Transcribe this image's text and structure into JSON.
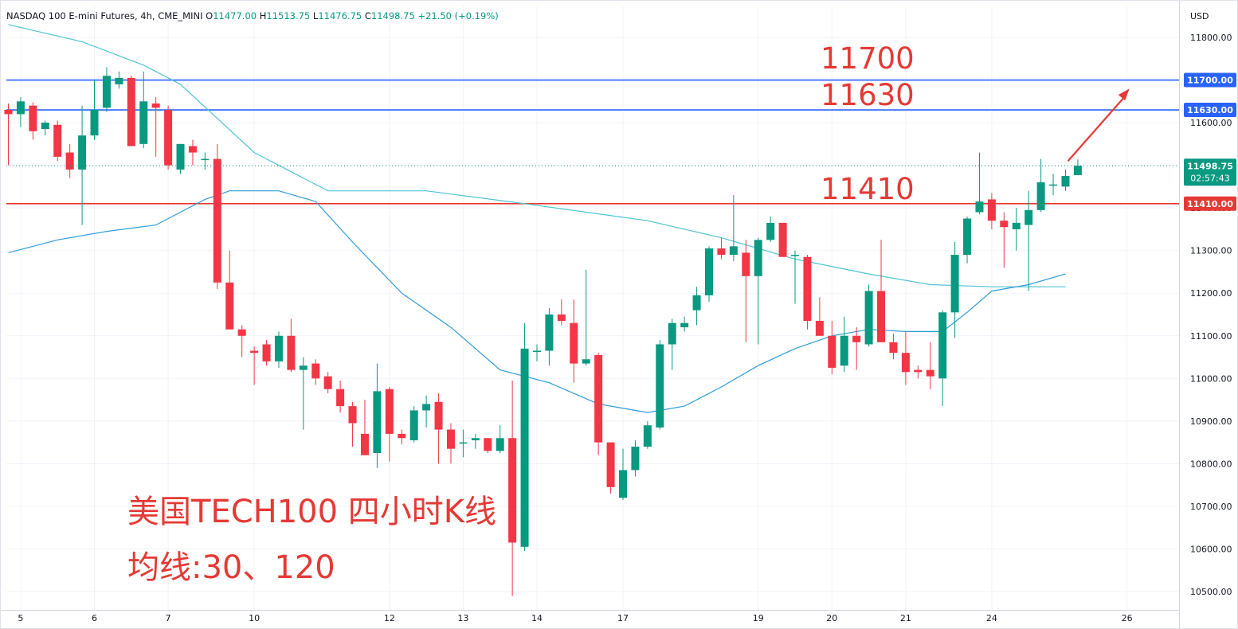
{
  "header": {
    "symbol": "NASDAQ 100 E-mini Futures, 4h, CME_MINI",
    "open_label": "O",
    "open": "11477.00",
    "high_label": "H",
    "high": "11513.75",
    "low_label": "L",
    "low": "11476.75",
    "close_label": "C",
    "close": "11498.75",
    "change": "+21.50 (+0.19%)"
  },
  "axis_unit": "USD",
  "price_badge": {
    "price": "11498.75",
    "countdown": "02:57:43"
  },
  "annotations": {
    "level_11700": "11700",
    "level_11630": "11630",
    "level_11410": "11410",
    "title": "美国TECH100 四小时K线",
    "ma_note": "均线:30、120"
  },
  "colors": {
    "up": "#089981",
    "down": "#f23645",
    "ma30": "#2f9bd6",
    "ma120": "#4ec3d6",
    "blue_line": "#2962ff",
    "red_line": "#e53935",
    "annotation": "#e53935"
  },
  "chart_data": {
    "type": "candlestick",
    "ylim": [
      10480,
      11840
    ],
    "y_ticks": [
      10500,
      10600,
      10700,
      10800,
      10900,
      11000,
      11100,
      11200,
      11300,
      11400,
      11500,
      11600,
      11700,
      11800
    ],
    "y_tick_labels": [
      "10500.00",
      "10600.00",
      "10700.00",
      "10800.00",
      "10900.00",
      "11000.00",
      "11100.00",
      "11200.00",
      "11300.00",
      "11400.00",
      "11500.00",
      "11600.00",
      "11700.00",
      "11800.00"
    ],
    "x_ticks": [
      {
        "label": "5",
        "bar": 1
      },
      {
        "label": "6",
        "bar": 7
      },
      {
        "label": "7",
        "bar": 13
      },
      {
        "label": "10",
        "bar": 20
      },
      {
        "label": "12",
        "bar": 31
      },
      {
        "label": "13",
        "bar": 37
      },
      {
        "label": "14",
        "bar": 43
      },
      {
        "label": "17",
        "bar": 50
      },
      {
        "label": "19",
        "bar": 61
      },
      {
        "label": "20",
        "bar": 67
      },
      {
        "label": "21",
        "bar": 73
      },
      {
        "label": "24",
        "bar": 80
      },
      {
        "label": "26",
        "bar": 91
      }
    ],
    "horizontal_lines": [
      {
        "price": 11700,
        "label": "11700.00",
        "color": "blue"
      },
      {
        "price": 11630,
        "label": "11630.00",
        "color": "blue"
      },
      {
        "price": 11410,
        "label": "11410.00",
        "color": "red"
      }
    ],
    "last_price": 11498.75,
    "candles": [
      [
        11630,
        11645,
        11500,
        11620
      ],
      [
        11620,
        11660,
        11590,
        11650
      ],
      [
        11640,
        11648,
        11560,
        11580
      ],
      [
        11585,
        11605,
        11570,
        11600
      ],
      [
        11595,
        11605,
        11510,
        11520
      ],
      [
        11530,
        11550,
        11470,
        11490
      ],
      [
        11490,
        11640,
        11360,
        11570
      ],
      [
        11570,
        11700,
        11560,
        11630
      ],
      [
        11635,
        11730,
        11625,
        11710
      ],
      [
        11690,
        11720,
        11680,
        11705
      ],
      [
        11705,
        11710,
        11545,
        11545
      ],
      [
        11550,
        11720,
        11540,
        11650
      ],
      [
        11645,
        11660,
        11520,
        11635
      ],
      [
        11630,
        11640,
        11490,
        11500
      ],
      [
        11490,
        11550,
        11480,
        11550
      ],
      [
        11545,
        11560,
        11500,
        11530
      ],
      [
        11515,
        11530,
        11490,
        11515
      ],
      [
        11515,
        11550,
        11210,
        11225
      ],
      [
        11225,
        11300,
        11115,
        11115
      ],
      [
        11115,
        11125,
        11050,
        11100
      ],
      [
        11065,
        11075,
        10985,
        11060
      ],
      [
        11080,
        11090,
        11030,
        11040
      ],
      [
        11040,
        11110,
        11025,
        11100
      ],
      [
        11100,
        11140,
        11015,
        11020
      ],
      [
        11020,
        11050,
        10880,
        11030
      ],
      [
        11035,
        11045,
        10985,
        11000
      ],
      [
        11005,
        11015,
        10965,
        10975
      ],
      [
        10975,
        10995,
        10920,
        10935
      ],
      [
        10935,
        10945,
        10840,
        10895
      ],
      [
        10870,
        10950,
        10820,
        10820
      ],
      [
        10825,
        11035,
        10790,
        10970
      ],
      [
        10975,
        10980,
        10805,
        10870
      ],
      [
        10870,
        10880,
        10845,
        10860
      ],
      [
        10855,
        10935,
        10850,
        10925
      ],
      [
        10925,
        10960,
        10885,
        10940
      ],
      [
        10945,
        10965,
        10800,
        10880
      ],
      [
        10880,
        10895,
        10800,
        10835
      ],
      [
        10850,
        10880,
        10815,
        10850
      ],
      [
        10855,
        10870,
        10835,
        10860
      ],
      [
        10860,
        10860,
        10825,
        10830
      ],
      [
        10830,
        10890,
        10825,
        10860
      ],
      [
        10860,
        10995,
        10490,
        10615
      ],
      [
        10605,
        11130,
        10595,
        11070
      ],
      [
        11065,
        11080,
        11040,
        11065
      ],
      [
        11065,
        11165,
        11030,
        11150
      ],
      [
        11150,
        11185,
        11125,
        11135
      ],
      [
        11130,
        11185,
        10990,
        11035
      ],
      [
        11035,
        11255,
        11030,
        11045
      ],
      [
        11055,
        11060,
        10820,
        10850
      ],
      [
        10850,
        10850,
        10730,
        10745
      ],
      [
        10720,
        10835,
        10715,
        10785
      ],
      [
        10785,
        10855,
        10770,
        10840
      ],
      [
        10840,
        10900,
        10835,
        10890
      ],
      [
        10885,
        11090,
        10880,
        11080
      ],
      [
        11080,
        11140,
        11020,
        11130
      ],
      [
        11120,
        11145,
        11110,
        11130
      ],
      [
        11160,
        11215,
        11125,
        11195
      ],
      [
        11195,
        11310,
        11180,
        11305
      ],
      [
        11305,
        11330,
        11280,
        11290
      ],
      [
        11290,
        11430,
        11275,
        11310
      ],
      [
        11295,
        11325,
        11085,
        11240
      ],
      [
        11240,
        11330,
        11080,
        11325
      ],
      [
        11325,
        11380,
        11320,
        11365
      ],
      [
        11365,
        11365,
        11290,
        11285
      ],
      [
        11290,
        11300,
        11175,
        11290
      ],
      [
        11285,
        11290,
        11115,
        11135
      ],
      [
        11135,
        11190,
        11100,
        11100
      ],
      [
        11100,
        11135,
        11010,
        11025
      ],
      [
        11030,
        11145,
        11015,
        11100
      ],
      [
        11100,
        11120,
        11020,
        11085
      ],
      [
        11080,
        11220,
        11075,
        11205
      ],
      [
        11205,
        11325,
        11085,
        11085
      ],
      [
        11085,
        11105,
        11045,
        11060
      ],
      [
        11060,
        11110,
        10985,
        11015
      ],
      [
        11020,
        11030,
        11000,
        11015
      ],
      [
        11020,
        11085,
        10975,
        11005
      ],
      [
        11000,
        11160,
        10935,
        11155
      ],
      [
        11155,
        11320,
        11095,
        11290
      ],
      [
        11290,
        11380,
        11270,
        11375
      ],
      [
        11390,
        11530,
        11385,
        11415
      ],
      [
        11420,
        11435,
        11350,
        11370
      ],
      [
        11370,
        11390,
        11260,
        11355
      ],
      [
        11350,
        11400,
        11300,
        11365
      ],
      [
        11360,
        11440,
        11205,
        11395
      ],
      [
        11395,
        11515,
        11390,
        11460
      ],
      [
        11455,
        11480,
        11430,
        11455
      ],
      [
        11450,
        11490,
        11440,
        11475
      ],
      [
        11477,
        11514,
        11477,
        11499
      ]
    ],
    "ma30": [
      [
        0,
        11295
      ],
      [
        4,
        11325
      ],
      [
        8,
        11345
      ],
      [
        12,
        11360
      ],
      [
        16,
        11420
      ],
      [
        18,
        11440
      ],
      [
        22,
        11440
      ],
      [
        25,
        11415
      ],
      [
        28,
        11320
      ],
      [
        32,
        11200
      ],
      [
        36,
        11120
      ],
      [
        40,
        11020
      ],
      [
        44,
        10990
      ],
      [
        48,
        10940
      ],
      [
        52,
        10920
      ],
      [
        55,
        10935
      ],
      [
        58,
        10980
      ],
      [
        61,
        11030
      ],
      [
        64,
        11070
      ],
      [
        67,
        11100
      ],
      [
        70,
        11115
      ],
      [
        73,
        11110
      ],
      [
        76,
        11110
      ],
      [
        78,
        11155
      ],
      [
        80,
        11205
      ],
      [
        83,
        11220
      ],
      [
        86,
        11245
      ]
    ],
    "ma120": [
      [
        0,
        11830
      ],
      [
        6,
        11790
      ],
      [
        11,
        11735
      ],
      [
        14,
        11690
      ],
      [
        17,
        11610
      ],
      [
        20,
        11530
      ],
      [
        26,
        11440
      ],
      [
        34,
        11440
      ],
      [
        42,
        11410
      ],
      [
        52,
        11370
      ],
      [
        58,
        11330
      ],
      [
        64,
        11280
      ],
      [
        70,
        11245
      ],
      [
        75,
        11220
      ],
      [
        80,
        11215
      ],
      [
        86,
        11215
      ]
    ],
    "arrow": {
      "from": [
        86.2,
        11510
      ],
      "to": [
        91.2,
        11680
      ]
    }
  }
}
